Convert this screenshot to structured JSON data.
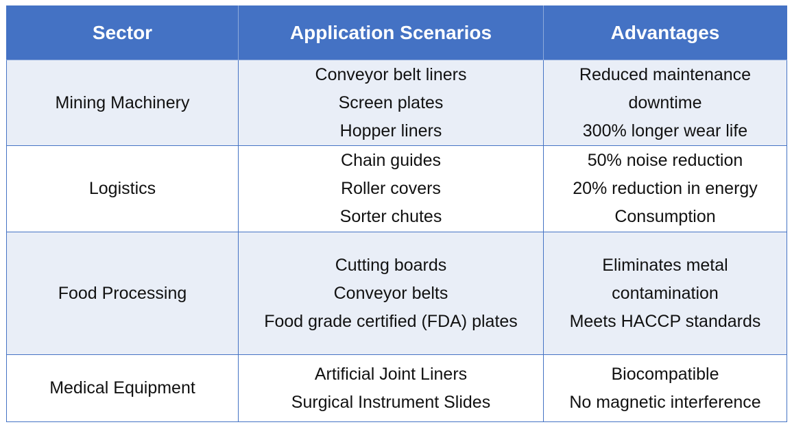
{
  "table": {
    "headers": [
      "Sector",
      "Application Scenarios",
      "Advantages"
    ],
    "rows": [
      {
        "sector": "Mining Machinery",
        "applications": [
          "Conveyor belt liners",
          "Screen plates",
          "Hopper liners"
        ],
        "advantages": [
          "Reduced maintenance",
          "downtime",
          "300% longer wear life"
        ]
      },
      {
        "sector": "Logistics",
        "applications": [
          "Chain guides",
          "Roller covers",
          "Sorter chutes"
        ],
        "advantages": [
          "50% noise reduction",
          "20% reduction in energy",
          "Consumption"
        ]
      },
      {
        "sector": "Food Processing",
        "applications": [
          "Cutting boards",
          "Conveyor belts",
          "Food grade certified (FDA) plates"
        ],
        "advantages": [
          "Eliminates metal",
          "contamination",
          "Meets HACCP standards"
        ]
      },
      {
        "sector": "Medical Equipment",
        "applications": [
          "Artificial Joint Liners",
          "Surgical Instrument Slides"
        ],
        "advantages": [
          "Biocompatible",
          "No magnetic interference"
        ]
      }
    ]
  },
  "colors": {
    "header_bg": "#4472c4",
    "header_text": "#ffffff",
    "band_bg": "#e9eef7",
    "border": "#4472c4"
  }
}
